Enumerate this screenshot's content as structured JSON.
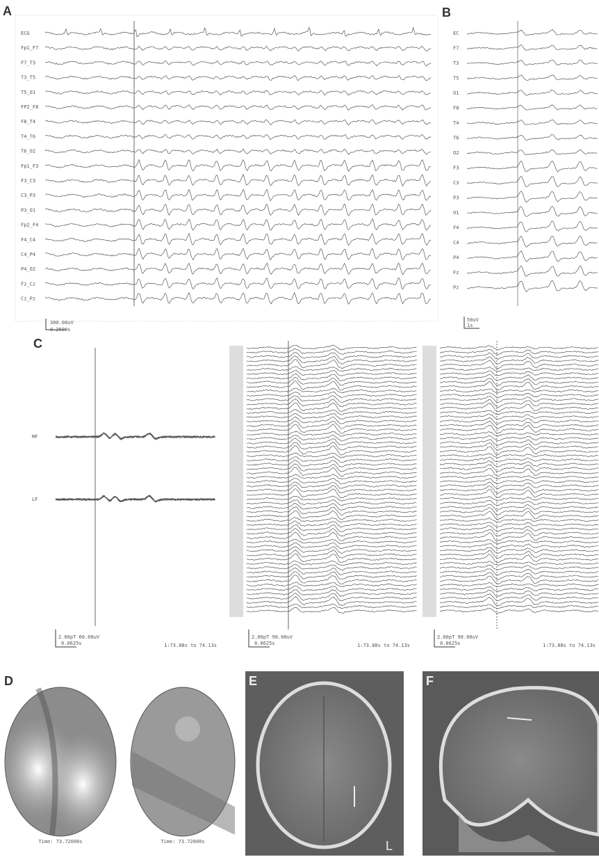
{
  "panels": {
    "A": {
      "label": "A",
      "channels": [
        "ECG",
        "Fp1_F7",
        "F7_T3",
        "T3_T5",
        "T5_O1",
        "FP2_F8",
        "F8_T4",
        "T4_T6",
        "T6_O2",
        "Fp1_F3",
        "F3_C3",
        "C3_P3",
        "P3_O1",
        "Fp2_F4",
        "F4_C4",
        "C4_P4",
        "P4_O2",
        "Fz_Cz",
        "Cz_Pz"
      ],
      "scale_amplitude": "300.00uV",
      "scale_time": "0.2500s"
    },
    "B": {
      "label": "B",
      "channels": [
        "EC",
        "F7",
        "T3",
        "T5",
        "O1",
        "F8",
        "T4",
        "T6",
        "O2",
        "F3",
        "C3",
        "P3",
        "O1",
        "F4",
        "C4",
        "P4",
        "Fz",
        "Pz"
      ],
      "scale_amplitude": "50uV",
      "scale_time": "1s"
    },
    "C": {
      "label": "C",
      "channels": [
        "MF",
        "LF"
      ],
      "subpanels": [
        {
          "scale_amplitude": "2.00pT 60.00uV",
          "scale_time": "0.0625s",
          "time_range": "1:73.88s to 74.13s"
        },
        {
          "scale_amplitude": "2.00pT 90.00uV",
          "scale_time": "0.0625s",
          "time_range": "1:73.88s to 74.13s"
        },
        {
          "scale_amplitude": "2.00pT 90.00uV",
          "scale_time": "0.0625s",
          "time_range": "1:73.88s to 74.13s"
        }
      ]
    },
    "D": {
      "label": "D",
      "times": [
        "Time: 73.72000s",
        "Time: 73.72000s"
      ]
    },
    "E": {
      "label": "E",
      "side": "L"
    },
    "F": {
      "label": "F"
    }
  }
}
